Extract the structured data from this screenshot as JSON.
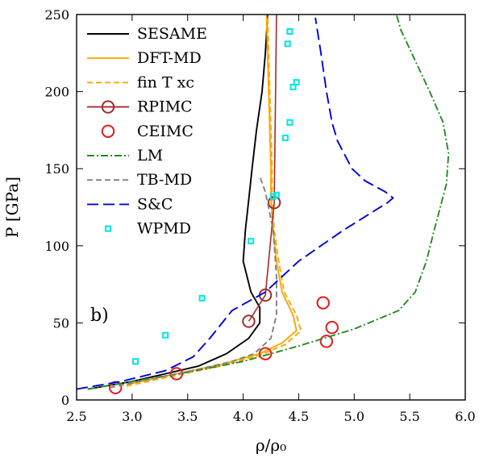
{
  "chart_data": {
    "type": "line",
    "panel_label": "b)",
    "xlabel": "ρ/ρ₀",
    "ylabel": "P [GPa]",
    "xlim": [
      2.5,
      6.0
    ],
    "ylim": [
      0,
      250
    ],
    "xticks": [
      "2.5",
      "3.0",
      "3.5",
      "4.0",
      "4.5",
      "5.0",
      "5.5",
      "6.0"
    ],
    "yticks": [
      "0",
      "50",
      "100",
      "150",
      "200",
      "250"
    ],
    "grid": false,
    "legend_position": "top-left",
    "series": [
      {
        "name": "SESAME",
        "color": "#000000",
        "style": "solid",
        "points": [
          [
            2.6,
            7
          ],
          [
            3.0,
            12
          ],
          [
            3.3,
            17
          ],
          [
            3.6,
            22
          ],
          [
            3.85,
            30
          ],
          [
            4.05,
            40
          ],
          [
            4.15,
            50
          ],
          [
            4.15,
            60
          ],
          [
            4.07,
            70
          ],
          [
            4.0,
            90
          ],
          [
            4.02,
            110
          ],
          [
            4.05,
            130
          ],
          [
            4.08,
            150
          ],
          [
            4.12,
            175
          ],
          [
            4.17,
            200
          ],
          [
            4.2,
            225
          ],
          [
            4.22,
            250
          ]
        ]
      },
      {
        "name": "DFT-MD",
        "color": "#ffa500",
        "style": "solid",
        "points": [
          [
            2.95,
            10
          ],
          [
            3.4,
            17
          ],
          [
            3.8,
            23
          ],
          [
            4.15,
            30
          ],
          [
            4.35,
            37
          ],
          [
            4.48,
            45
          ],
          [
            4.45,
            55
          ],
          [
            4.35,
            70
          ],
          [
            4.3,
            90
          ],
          [
            4.27,
            110
          ],
          [
            4.25,
            130
          ],
          [
            4.25,
            150
          ],
          [
            4.24,
            175
          ],
          [
            4.23,
            200
          ],
          [
            4.22,
            225
          ],
          [
            4.21,
            250
          ]
        ]
      },
      {
        "name": "fin T xc",
        "color": "#ffa500",
        "style": "dashed",
        "points": [
          [
            2.95,
            9
          ],
          [
            3.4,
            16
          ],
          [
            3.8,
            22
          ],
          [
            4.15,
            29
          ],
          [
            4.38,
            36
          ],
          [
            4.52,
            45
          ],
          [
            4.48,
            55
          ],
          [
            4.37,
            70
          ],
          [
            4.32,
            90
          ],
          [
            4.28,
            110
          ],
          [
            4.26,
            130
          ],
          [
            4.26,
            150
          ],
          [
            4.25,
            175
          ],
          [
            4.24,
            200
          ],
          [
            4.23,
            225
          ],
          [
            4.22,
            250
          ]
        ]
      },
      {
        "name": "RPIMC",
        "color": "#a52a2a",
        "style": "line-circle",
        "points": [
          [
            4.05,
            51
          ],
          [
            4.2,
            68
          ],
          [
            4.28,
            128
          ],
          [
            4.3,
            250
          ]
        ]
      },
      {
        "name": "CEIMC",
        "color": "#e41a1c",
        "style": "circle",
        "points": [
          [
            2.85,
            8
          ],
          [
            3.4,
            17
          ],
          [
            4.2,
            30
          ],
          [
            4.75,
            38
          ],
          [
            4.8,
            47
          ],
          [
            4.72,
            63
          ]
        ]
      },
      {
        "name": "LM",
        "color": "#228b22",
        "style": "dashdot",
        "points": [
          [
            2.6,
            7
          ],
          [
            3.0,
            12
          ],
          [
            3.5,
            18
          ],
          [
            4.0,
            25
          ],
          [
            4.5,
            35
          ],
          [
            5.0,
            46
          ],
          [
            5.4,
            58
          ],
          [
            5.55,
            70
          ],
          [
            5.65,
            90
          ],
          [
            5.72,
            110
          ],
          [
            5.83,
            140
          ],
          [
            5.85,
            160
          ],
          [
            5.8,
            180
          ],
          [
            5.68,
            200
          ],
          [
            5.55,
            220
          ],
          [
            5.42,
            240
          ],
          [
            5.38,
            250
          ]
        ]
      },
      {
        "name": "TB-MD",
        "color": "#808080",
        "style": "dashed",
        "points": [
          [
            2.8,
            8
          ],
          [
            3.2,
            14
          ],
          [
            3.6,
            20
          ],
          [
            3.9,
            25
          ],
          [
            4.1,
            30
          ],
          [
            4.25,
            40
          ],
          [
            4.3,
            55
          ],
          [
            4.3,
            80
          ],
          [
            4.27,
            110
          ],
          [
            4.2,
            135
          ],
          [
            4.15,
            145
          ]
        ]
      },
      {
        "name": "S&C",
        "color": "#0000dd",
        "style": "longdash",
        "points": [
          [
            2.5,
            7
          ],
          [
            2.9,
            12
          ],
          [
            3.3,
            19
          ],
          [
            3.55,
            28
          ],
          [
            3.7,
            40
          ],
          [
            3.9,
            58
          ],
          [
            4.2,
            70
          ],
          [
            4.5,
            90
          ],
          [
            4.9,
            110
          ],
          [
            5.3,
            128
          ],
          [
            5.35,
            131
          ],
          [
            5.28,
            135
          ],
          [
            5.1,
            142
          ],
          [
            4.98,
            150
          ],
          [
            4.85,
            168
          ],
          [
            4.8,
            180
          ],
          [
            4.75,
            200
          ],
          [
            4.7,
            225
          ],
          [
            4.65,
            248
          ]
        ]
      },
      {
        "name": "WPMD",
        "color": "#00e5e5",
        "style": "square",
        "points": [
          [
            3.03,
            25
          ],
          [
            3.3,
            42
          ],
          [
            3.63,
            66
          ],
          [
            4.07,
            103
          ],
          [
            4.27,
            132
          ],
          [
            4.3,
            133
          ],
          [
            4.38,
            170
          ],
          [
            4.42,
            180
          ],
          [
            4.45,
            203
          ],
          [
            4.48,
            206
          ],
          [
            4.4,
            231
          ],
          [
            4.42,
            239
          ]
        ]
      }
    ]
  }
}
